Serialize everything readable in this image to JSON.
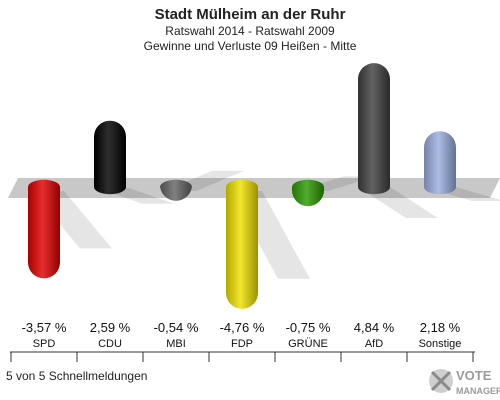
{
  "chart_data": {
    "type": "bar",
    "title": "Stadt Mülheim an der Ruhr",
    "subtitle_1": "Ratswahl 2014 - Ratswahl 2009",
    "subtitle_2": "Gewinne und Verluste 09 Heißen - Mitte",
    "categories": [
      "SPD",
      "CDU",
      "MBI",
      "FDP",
      "GRÜNE",
      "AfD",
      "Sonstige"
    ],
    "values": [
      -3.57,
      2.59,
      -0.54,
      -4.76,
      -0.75,
      4.84,
      2.18
    ],
    "value_labels": [
      "-3,57 %",
      "2,59 %",
      "-0,54 %",
      "-4,76 %",
      "-0,75 %",
      "4,84 %",
      "2,18 %"
    ],
    "colors": [
      "#e00000",
      "#000000",
      "#646464",
      "#f0e000",
      "#2a9a00",
      "#404040",
      "#9aaee0"
    ],
    "grid": false,
    "legend": "none"
  },
  "footer": {
    "note": "5 von 5 Schnellmeldungen",
    "logo_text_1": "VOTE",
    "logo_text_2": "MANAGER"
  }
}
